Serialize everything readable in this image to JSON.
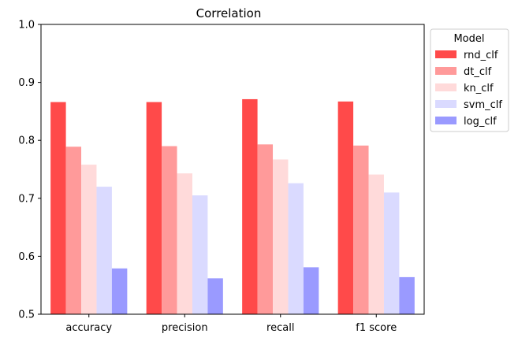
{
  "chart_data": {
    "type": "bar",
    "title": "Correlation",
    "xlabel": "",
    "ylabel": "",
    "categories": [
      "accuracy",
      "precision",
      "recall",
      "f1 score"
    ],
    "ylim": [
      0.5,
      1.0
    ],
    "yticks": [
      "0.5",
      "0.6",
      "0.7",
      "0.8",
      "0.9",
      "1.0"
    ],
    "grid": false,
    "legend": {
      "title": "Model",
      "placement": "outside-top-right"
    },
    "series": [
      {
        "name": "rnd_clf",
        "color": "#ff4a4a",
        "values": [
          0.866,
          0.866,
          0.871,
          0.867
        ]
      },
      {
        "name": "dt_clf",
        "color": "#ff9a9a",
        "values": [
          0.789,
          0.79,
          0.793,
          0.791
        ]
      },
      {
        "name": "kn_clf",
        "color": "#ffdada",
        "values": [
          0.758,
          0.743,
          0.767,
          0.741
        ]
      },
      {
        "name": "svm_clf",
        "color": "#dadaff",
        "values": [
          0.72,
          0.705,
          0.726,
          0.71
        ]
      },
      {
        "name": "log_clf",
        "color": "#9a9aff",
        "values": [
          0.579,
          0.562,
          0.581,
          0.564
        ]
      }
    ]
  }
}
